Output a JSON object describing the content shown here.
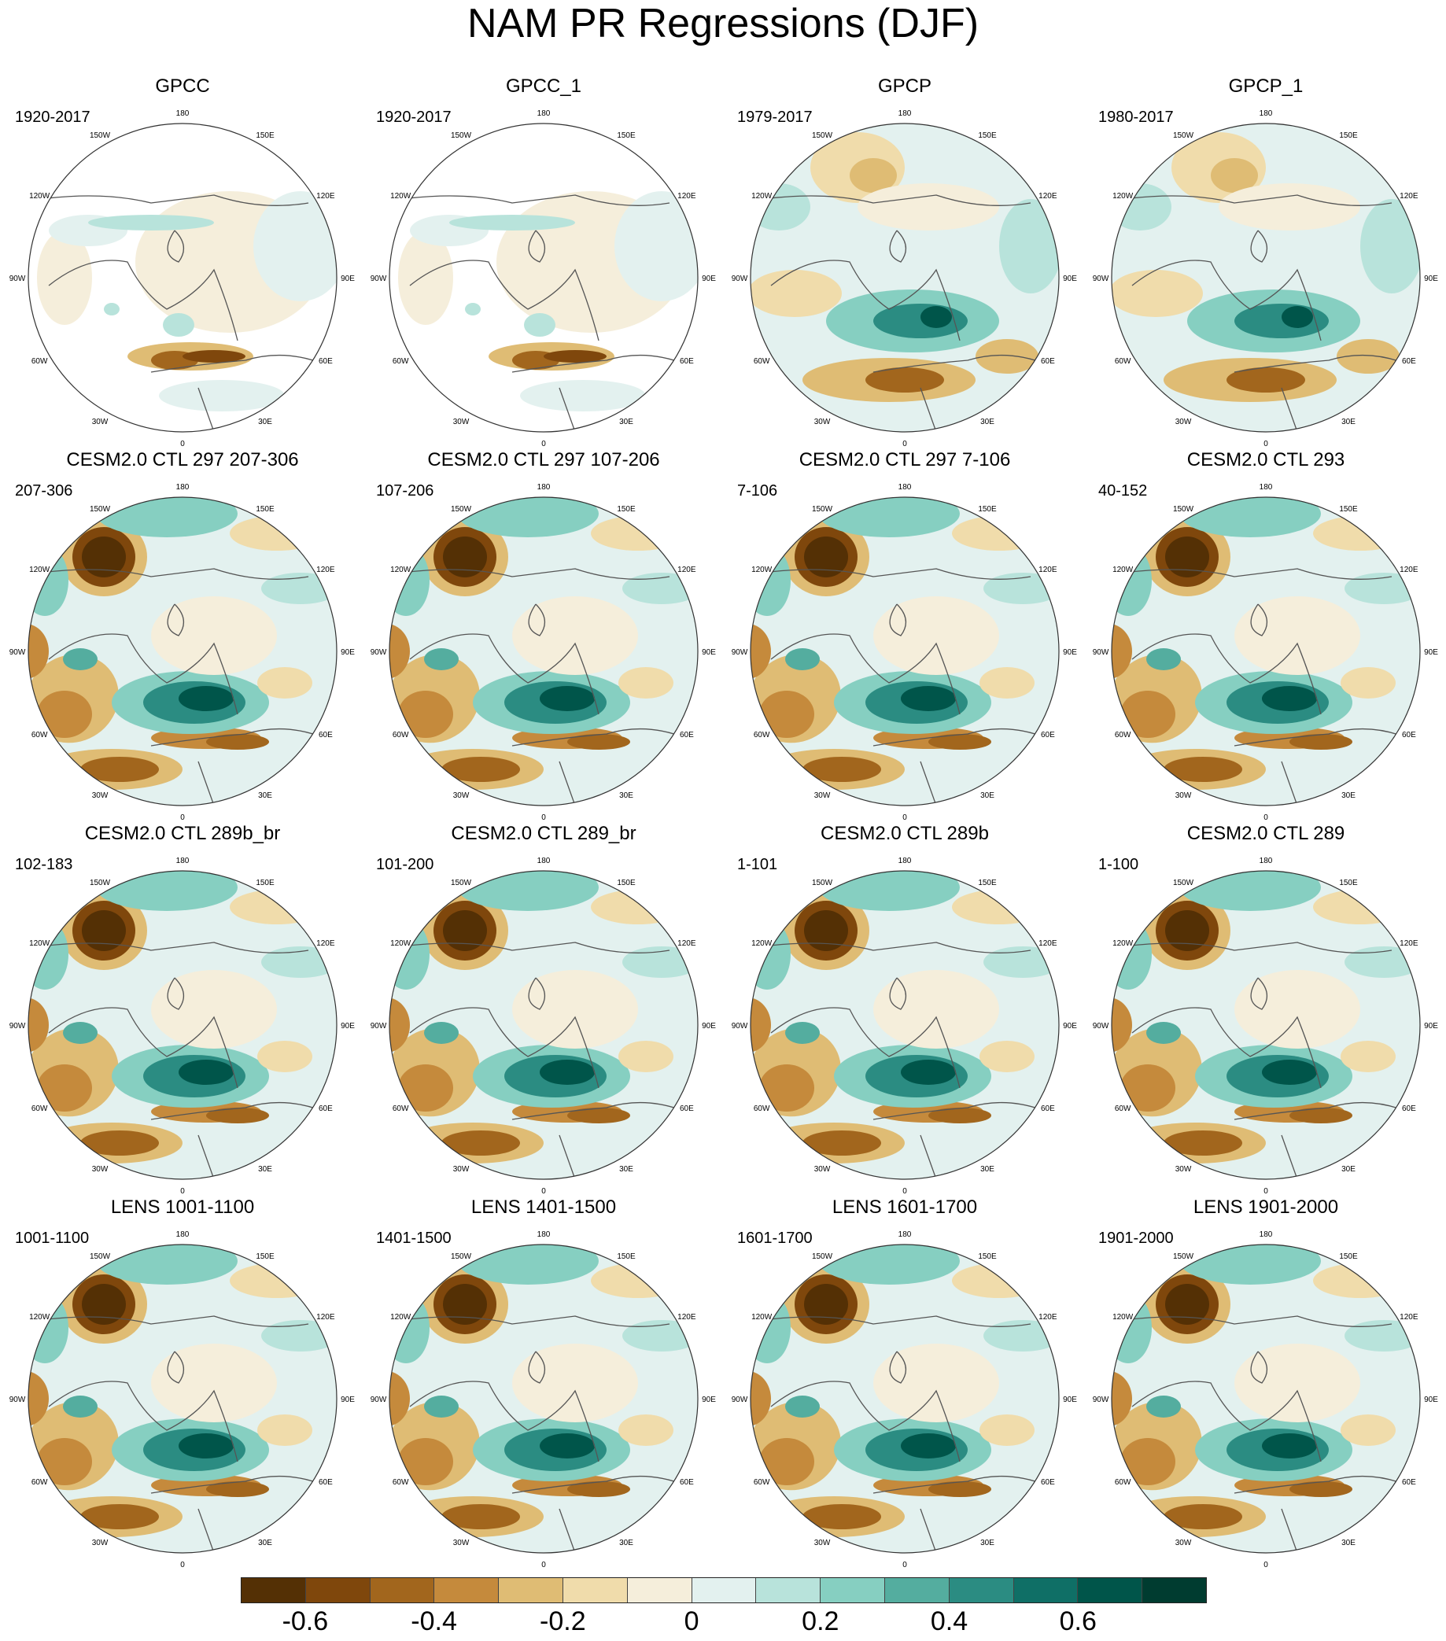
{
  "title": "NAM PR Regressions (DJF)",
  "panels": [
    {
      "title": "GPCC",
      "period": "1920-2017",
      "type": "obs-land"
    },
    {
      "title": "GPCC_1",
      "period": "1920-2017",
      "type": "obs-land"
    },
    {
      "title": "GPCP",
      "period": "1979-2017",
      "type": "obs"
    },
    {
      "title": "GPCP_1",
      "period": "1980-2017",
      "type": "obs"
    },
    {
      "title": "CESM2.0 CTL 297 207-306",
      "period": "207-306",
      "type": "model"
    },
    {
      "title": "CESM2.0 CTL 297 107-206",
      "period": "107-206",
      "type": "model"
    },
    {
      "title": "CESM2.0 CTL 297 7-106",
      "period": "7-106",
      "type": "model"
    },
    {
      "title": "CESM2.0 CTL 293",
      "period": "40-152",
      "type": "model"
    },
    {
      "title": "CESM2.0 CTL 289b_br",
      "period": "102-183",
      "type": "model"
    },
    {
      "title": "CESM2.0 CTL 289_br",
      "period": "101-200",
      "type": "model"
    },
    {
      "title": "CESM2.0 CTL 289b",
      "period": "1-101",
      "type": "model"
    },
    {
      "title": "CESM2.0 CTL 289",
      "period": "1-100",
      "type": "model"
    },
    {
      "title": "LENS 1001-1100",
      "period": "1001-1100",
      "type": "model"
    },
    {
      "title": "LENS 1401-1500",
      "period": "1401-1500",
      "type": "model"
    },
    {
      "title": "LENS 1601-1700",
      "period": "1601-1700",
      "type": "model"
    },
    {
      "title": "LENS 1901-2000",
      "period": "1901-2000",
      "type": "model"
    }
  ],
  "longitude_labels": [
    "180",
    "150E",
    "120E",
    "90E",
    "60E",
    "30E",
    "0",
    "30W",
    "60W",
    "90W",
    "120W",
    "150W"
  ],
  "colorbar": {
    "colors": [
      "#543005",
      "#7f470c",
      "#a2661d",
      "#c58a3c",
      "#dfbc74",
      "#f0dcab",
      "#f5eedb",
      "#e3f1ef",
      "#b8e3db",
      "#86cfc1",
      "#54ad9f",
      "#2b8c82",
      "#0f6f66",
      "#00554a",
      "#003c30"
    ],
    "tick_labels": [
      "-0.6",
      "-0.4",
      "-0.2",
      "0",
      "0.2",
      "0.4",
      "0.6"
    ],
    "tick_values": [
      -0.6,
      -0.4,
      -0.2,
      0,
      0.2,
      0.4,
      0.6
    ]
  },
  "map_colors": {
    "ocean_outside": "#ffffff",
    "coast": "#555555",
    "border": "#333333"
  }
}
